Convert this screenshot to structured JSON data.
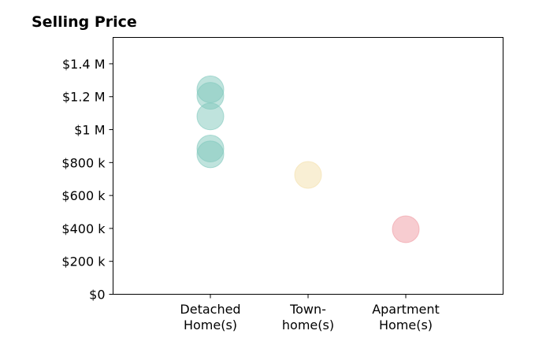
{
  "chart_data": {
    "type": "scatter",
    "title": "Selling Price",
    "xlabel": "",
    "ylabel": "",
    "categories": [
      [
        "Detached",
        "Home(s)"
      ],
      [
        "Town-",
        "home(s)"
      ],
      [
        "Apartment",
        "Home(s)"
      ]
    ],
    "ylim": [
      0,
      1560000
    ],
    "yticks": [
      0,
      200000,
      400000,
      600000,
      800000,
      1000000,
      1200000,
      1400000
    ],
    "ytick_labels": [
      "$0",
      "$200 k",
      "$400 k",
      "$600 k",
      "$800 k",
      "$1 M",
      "$1.2 M",
      "$1.4 M"
    ],
    "grid": false,
    "legend": "none",
    "points": [
      {
        "category": 0,
        "value": 1245000,
        "color": "#7fc8bc"
      },
      {
        "category": 0,
        "value": 1205000,
        "color": "#7fc8bc"
      },
      {
        "category": 0,
        "value": 1080000,
        "color": "#7fc8bc"
      },
      {
        "category": 0,
        "value": 885000,
        "color": "#7fc8bc"
      },
      {
        "category": 0,
        "value": 850000,
        "color": "#7fc8bc"
      },
      {
        "category": 1,
        "value": 725000,
        "color": "#f3dfaa"
      },
      {
        "category": 2,
        "value": 395000,
        "color": "#f09aa2"
      }
    ]
  }
}
